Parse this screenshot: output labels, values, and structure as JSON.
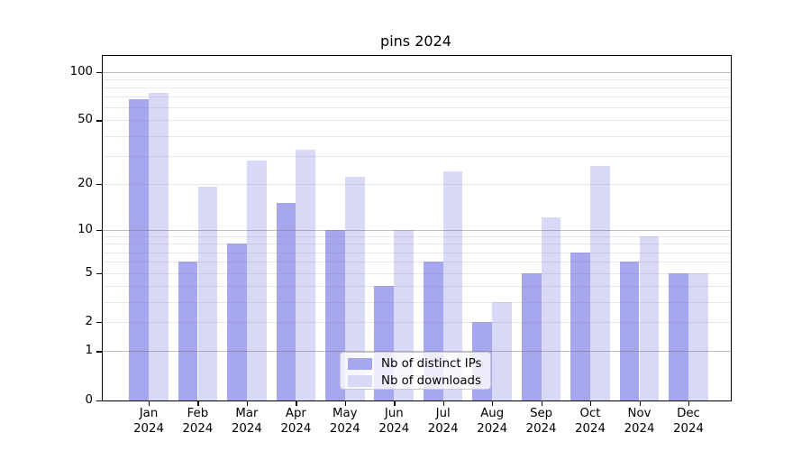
{
  "title": "pins 2024",
  "colors": {
    "distinct_ips": "#a7a7f0",
    "downloads": "#d8d8f7",
    "axis": "#000000",
    "grid_major": "#bebebe",
    "grid_minor": "#e8e8e8",
    "background": "#ffffff"
  },
  "y_axis": {
    "tick_values": [
      0,
      1,
      2,
      5,
      10,
      20,
      50,
      100
    ],
    "tick_labels": [
      "0",
      "1",
      "2",
      "5",
      "10",
      "20",
      "50",
      "100"
    ],
    "major_gridlines": [
      1,
      10,
      100
    ],
    "minor_gridlines": [
      2,
      3,
      4,
      5,
      6,
      7,
      8,
      9,
      20,
      30,
      40,
      50,
      60,
      70,
      80,
      90
    ],
    "scale": "log1p",
    "ymax": 125
  },
  "x_axis": {
    "months": [
      "Jan",
      "Feb",
      "Mar",
      "Apr",
      "May",
      "Jun",
      "Jul",
      "Aug",
      "Sep",
      "Oct",
      "Nov",
      "Dec"
    ],
    "year": "2024"
  },
  "legend": {
    "items": [
      {
        "label": "Nb of distinct IPs",
        "color_key": "distinct_ips"
      },
      {
        "label": "Nb of downloads",
        "color_key": "downloads"
      }
    ]
  },
  "chart_data": {
    "type": "bar",
    "title": "pins 2024",
    "categories": [
      "Jan 2024",
      "Feb 2024",
      "Mar 2024",
      "Apr 2024",
      "May 2024",
      "Jun 2024",
      "Jul 2024",
      "Aug 2024",
      "Sep 2024",
      "Oct 2024",
      "Nov 2024",
      "Dec 2024"
    ],
    "series": [
      {
        "name": "Nb of distinct IPs",
        "color": "#a7a7f0",
        "values": [
          68,
          6,
          8,
          15,
          10,
          4,
          6,
          2,
          5,
          7,
          6,
          5
        ]
      },
      {
        "name": "Nb of downloads",
        "color": "#d8d8f7",
        "values": [
          74,
          19,
          28,
          33,
          22,
          10,
          24,
          3,
          12,
          26,
          9,
          5
        ]
      }
    ],
    "xlabel": "",
    "ylabel": "",
    "yscale": "log1p",
    "ylim": [
      0,
      125
    ],
    "grid": true,
    "legend_position": "lower center"
  }
}
